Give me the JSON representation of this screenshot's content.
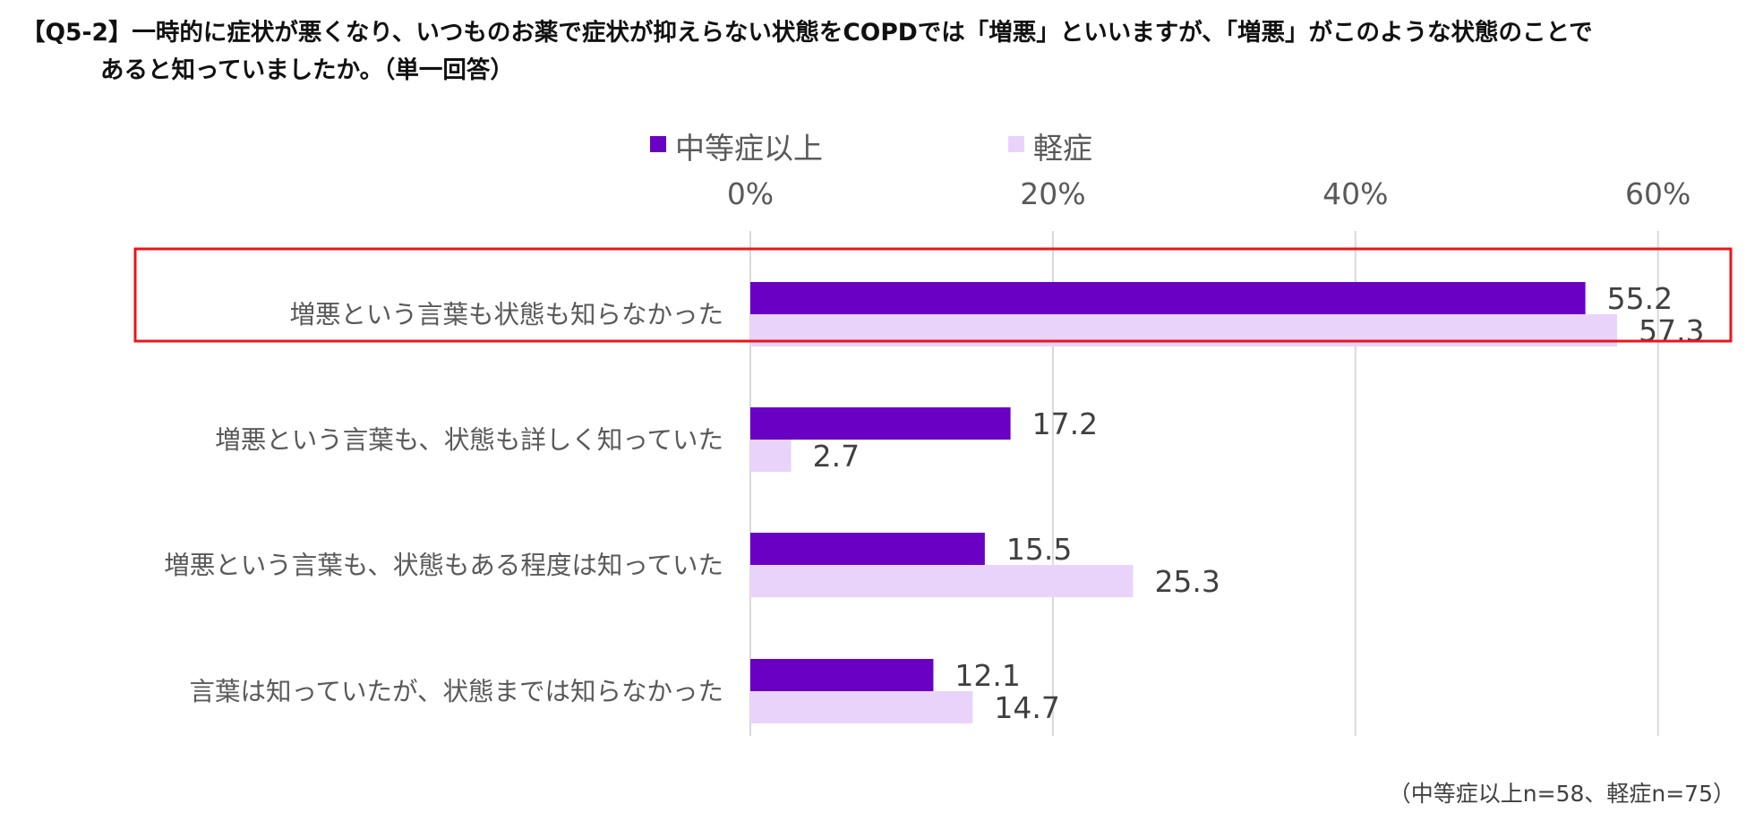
{
  "title_lines": [
    "【Q5-2】一時的に症状が悪くなり、いつものお薬で症状が抑えらない状態をCOPDでは「増悪」といいますが、「増悪」がこのような状態のことで",
    "あると知っていましたか。（単一回答）"
  ],
  "footnote": "（中等症以上n=58、軽症n=75）",
  "colors": {
    "moderate": "#6a00c4",
    "mild": "#e9d3fb",
    "highlight": "#e8161c",
    "grid": "#d9d9d9"
  },
  "chart_data": {
    "type": "bar",
    "orientation": "horizontal",
    "title": "【Q5-2】一時的に症状が悪くなり、いつものお薬で症状が抑えらない状態をCOPDでは「増悪」といいますが、「増悪」がこのような状態のことであると知っていましたか。（単一回答）",
    "categories": [
      "増悪という言葉も状態も知らなかった",
      "増悪という言葉も、状態も詳しく知っていた",
      "増悪という言葉も、状態もある程度は知っていた",
      "言葉は知っていたが、状態までは知らなかった"
    ],
    "series": [
      {
        "name": "中等症以上",
        "values": [
          55.2,
          17.2,
          15.5,
          12.1
        ],
        "value_labels": [
          "55.2",
          "17.2",
          "15.5",
          "12.1"
        ],
        "color": "#6a00c4"
      },
      {
        "name": "軽症",
        "values": [
          57.3,
          2.7,
          25.3,
          14.7
        ],
        "value_labels": [
          "57.3",
          "2.7",
          "25.3",
          "14.7"
        ],
        "color": "#e9d3fb"
      }
    ],
    "x_ticks": [
      "0%",
      "20%",
      "40%",
      "60%"
    ],
    "xlim": [
      0,
      65
    ],
    "x_axis_position": "top",
    "grid": true,
    "legend": "top",
    "highlighted_category": "増悪という言葉も状態も知らなかった"
  }
}
